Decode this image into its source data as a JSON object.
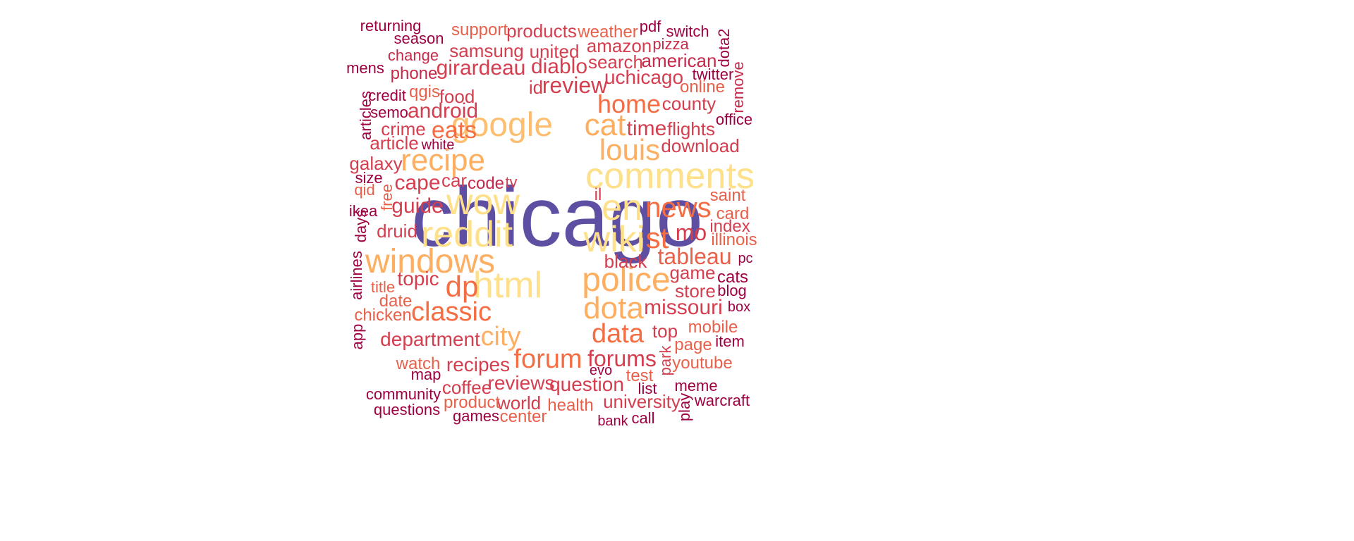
{
  "palette": [
    "#5e4fa2",
    "#fee08b",
    "#fdbf6f",
    "#fdae61",
    "#f46d43",
    "#e8604a",
    "#d53e4f",
    "#c52a4a",
    "#9e0142"
  ],
  "words": [
    {
      "text": "chicago",
      "size": 120,
      "color": "#5e4fa2"
    },
    {
      "text": "comments",
      "size": 52,
      "color": "#fee08b"
    },
    {
      "text": "reddit",
      "size": 52,
      "color": "#fee08b"
    },
    {
      "text": "wow",
      "size": 52,
      "color": "#fee08b"
    },
    {
      "text": "en",
      "size": 52,
      "color": "#fee08b"
    },
    {
      "text": "wiki",
      "size": 52,
      "color": "#fee08b"
    },
    {
      "text": "html",
      "size": 52,
      "color": "#fee08b"
    },
    {
      "text": "google",
      "size": 48,
      "color": "#fdbf6f"
    },
    {
      "text": "windows",
      "size": 48,
      "color": "#fdae61"
    },
    {
      "text": "police",
      "size": 48,
      "color": "#fdae61"
    },
    {
      "text": "recipe",
      "size": 44,
      "color": "#fdae61"
    },
    {
      "text": "louis",
      "size": 42,
      "color": "#fdae61"
    },
    {
      "text": "cat",
      "size": 44,
      "color": "#fdae61"
    },
    {
      "text": "dota",
      "size": 44,
      "color": "#fdae61"
    },
    {
      "text": "dp",
      "size": 42,
      "color": "#f46d43"
    },
    {
      "text": "st",
      "size": 42,
      "color": "#f46d43"
    },
    {
      "text": "news",
      "size": 40,
      "color": "#f46d43"
    },
    {
      "text": "classic",
      "size": 38,
      "color": "#f46d43"
    },
    {
      "text": "forum",
      "size": 38,
      "color": "#f46d43"
    },
    {
      "text": "data",
      "size": 38,
      "color": "#f46d43"
    },
    {
      "text": "city",
      "size": 38,
      "color": "#fdae61"
    },
    {
      "text": "home",
      "size": 36,
      "color": "#f46d43"
    },
    {
      "text": "eats",
      "size": 34,
      "color": "#f46d43"
    },
    {
      "text": "tableau",
      "size": 32,
      "color": "#e8604a"
    },
    {
      "text": "forums",
      "size": 32,
      "color": "#d53e4f"
    },
    {
      "text": "review",
      "size": 32,
      "color": "#d53e4f"
    },
    {
      "text": "mo",
      "size": 32,
      "color": "#d53e4f"
    },
    {
      "text": "missouri",
      "size": 30,
      "color": "#d53e4f"
    },
    {
      "text": "time",
      "size": 30,
      "color": "#d53e4f"
    },
    {
      "text": "android",
      "size": 30,
      "color": "#d53e4f"
    },
    {
      "text": "girardeau",
      "size": 30,
      "color": "#d53e4f"
    },
    {
      "text": "diablo",
      "size": 30,
      "color": "#d53e4f"
    },
    {
      "text": "guide",
      "size": 30,
      "color": "#d53e4f"
    },
    {
      "text": "cape",
      "size": 30,
      "color": "#d53e4f"
    },
    {
      "text": "department",
      "size": 28,
      "color": "#d53e4f"
    },
    {
      "text": "recipes",
      "size": 28,
      "color": "#d53e4f"
    },
    {
      "text": "reviews",
      "size": 28,
      "color": "#d53e4f"
    },
    {
      "text": "question",
      "size": 28,
      "color": "#d53e4f"
    },
    {
      "text": "topic",
      "size": 28,
      "color": "#d53e4f"
    },
    {
      "text": "uchicago",
      "size": 28,
      "color": "#d53e4f"
    },
    {
      "text": "samsung",
      "size": 26,
      "color": "#d53e4f"
    },
    {
      "text": "products",
      "size": 26,
      "color": "#d53e4f"
    },
    {
      "text": "search",
      "size": 26,
      "color": "#d53e4f"
    },
    {
      "text": "druid",
      "size": 26,
      "color": "#d53e4f"
    },
    {
      "text": "black",
      "size": 26,
      "color": "#d53e4f"
    },
    {
      "text": "game",
      "size": 26,
      "color": "#d53e4f"
    },
    {
      "text": "store",
      "size": 26,
      "color": "#d53e4f"
    },
    {
      "text": "top",
      "size": 26,
      "color": "#d53e4f"
    },
    {
      "text": "coffee",
      "size": 26,
      "color": "#d53e4f"
    },
    {
      "text": "world",
      "size": 26,
      "color": "#d53e4f"
    },
    {
      "text": "university",
      "size": 26,
      "color": "#d53e4f"
    },
    {
      "text": "amazon",
      "size": 26,
      "color": "#d53e4f"
    },
    {
      "text": "american",
      "size": 26,
      "color": "#c52a4a"
    },
    {
      "text": "county",
      "size": 26,
      "color": "#d53e4f"
    },
    {
      "text": "flights",
      "size": 26,
      "color": "#d53e4f"
    },
    {
      "text": "download",
      "size": 26,
      "color": "#d53e4f"
    },
    {
      "text": "united",
      "size": 26,
      "color": "#d53e4f"
    },
    {
      "text": "weather",
      "size": 24,
      "color": "#e8604a"
    },
    {
      "text": "support",
      "size": 24,
      "color": "#e8604a"
    },
    {
      "text": "food",
      "size": 26,
      "color": "#d53e4f"
    },
    {
      "text": "crime",
      "size": 26,
      "color": "#d53e4f"
    },
    {
      "text": "article",
      "size": 26,
      "color": "#d53e4f"
    },
    {
      "text": "galaxy",
      "size": 26,
      "color": "#d53e4f"
    },
    {
      "text": "car",
      "size": 26,
      "color": "#d53e4f"
    },
    {
      "text": "code",
      "size": 24,
      "color": "#c52a4a"
    },
    {
      "text": "index",
      "size": 24,
      "color": "#d53e4f"
    },
    {
      "text": "illinois",
      "size": 24,
      "color": "#e8604a"
    },
    {
      "text": "saint",
      "size": 24,
      "color": "#e8604a"
    },
    {
      "text": "card",
      "size": 24,
      "color": "#e8604a"
    },
    {
      "text": "mobile",
      "size": 24,
      "color": "#e8604a"
    },
    {
      "text": "page",
      "size": 24,
      "color": "#e8604a"
    },
    {
      "text": "youtube",
      "size": 24,
      "color": "#e8604a"
    },
    {
      "text": "health",
      "size": 24,
      "color": "#e8604a"
    },
    {
      "text": "product",
      "size": 24,
      "color": "#e8604a"
    },
    {
      "text": "center",
      "size": 24,
      "color": "#e8604a"
    },
    {
      "text": "test",
      "size": 24,
      "color": "#e8604a"
    },
    {
      "text": "watch",
      "size": 24,
      "color": "#e8604a"
    },
    {
      "text": "date",
      "size": 24,
      "color": "#e8604a"
    },
    {
      "text": "title",
      "size": 22,
      "color": "#e8604a"
    },
    {
      "text": "chicken",
      "size": 24,
      "color": "#e8604a"
    },
    {
      "text": "qgis",
      "size": 24,
      "color": "#e8604a"
    },
    {
      "text": "online",
      "size": 24,
      "color": "#e8604a"
    },
    {
      "text": "pizza",
      "size": 22,
      "color": "#c52a4a"
    },
    {
      "text": "phone",
      "size": 24,
      "color": "#c52a4a"
    },
    {
      "text": "change",
      "size": 22,
      "color": "#c52a4a"
    },
    {
      "text": "season",
      "size": 22,
      "color": "#9e0142"
    },
    {
      "text": "returning",
      "size": 22,
      "color": "#9e0142"
    },
    {
      "text": "mens",
      "size": 22,
      "color": "#9e0142"
    },
    {
      "text": "credit",
      "size": 22,
      "color": "#9e0142"
    },
    {
      "text": "semo",
      "size": 22,
      "color": "#9e0142"
    },
    {
      "text": "white",
      "size": 20,
      "color": "#9e0142"
    },
    {
      "text": "size",
      "size": 22,
      "color": "#9e0142"
    },
    {
      "text": "qid",
      "size": 22,
      "color": "#e8604a"
    },
    {
      "text": "ikea",
      "size": 22,
      "color": "#9e0142"
    },
    {
      "text": "tv",
      "size": 22,
      "color": "#d53e4f"
    },
    {
      "text": "il",
      "size": 24,
      "color": "#d53e4f"
    },
    {
      "text": "id",
      "size": 26,
      "color": "#d53e4f"
    },
    {
      "text": "pdf",
      "size": 22,
      "color": "#9e0142"
    },
    {
      "text": "switch",
      "size": 22,
      "color": "#9e0142"
    },
    {
      "text": "twitter",
      "size": 22,
      "color": "#9e0142"
    },
    {
      "text": "office",
      "size": 22,
      "color": "#9e0142"
    },
    {
      "text": "pc",
      "size": 20,
      "color": "#9e0142"
    },
    {
      "text": "cats",
      "size": 24,
      "color": "#9e0142"
    },
    {
      "text": "blog",
      "size": 22,
      "color": "#9e0142"
    },
    {
      "text": "box",
      "size": 20,
      "color": "#9e0142"
    },
    {
      "text": "item",
      "size": 22,
      "color": "#9e0142"
    },
    {
      "text": "meme",
      "size": 22,
      "color": "#9e0142"
    },
    {
      "text": "warcraft",
      "size": 22,
      "color": "#9e0142"
    },
    {
      "text": "call",
      "size": 22,
      "color": "#9e0142"
    },
    {
      "text": "bank",
      "size": 20,
      "color": "#9e0142"
    },
    {
      "text": "list",
      "size": 22,
      "color": "#9e0142"
    },
    {
      "text": "evo",
      "size": 20,
      "color": "#9e0142"
    },
    {
      "text": "games",
      "size": 22,
      "color": "#9e0142"
    },
    {
      "text": "questions",
      "size": 22,
      "color": "#9e0142"
    },
    {
      "text": "community",
      "size": 22,
      "color": "#9e0142"
    },
    {
      "text": "map",
      "size": 22,
      "color": "#9e0142"
    },
    {
      "text": "app",
      "size": 22,
      "color": "#9e0142",
      "vertical": true
    },
    {
      "text": "airlines",
      "size": 22,
      "color": "#9e0142",
      "vertical": true
    },
    {
      "text": "days",
      "size": 22,
      "color": "#9e0142",
      "vertical": true
    },
    {
      "text": "free",
      "size": 22,
      "color": "#e8604a",
      "vertical": true
    },
    {
      "text": "articles",
      "size": 22,
      "color": "#9e0142",
      "vertical": true
    },
    {
      "text": "remove",
      "size": 22,
      "color": "#c52a4a",
      "vertical": true
    },
    {
      "text": "dota2",
      "size": 22,
      "color": "#9e0142",
      "vertical": true
    },
    {
      "text": "park",
      "size": 22,
      "color": "#d53e4f",
      "vertical": true
    },
    {
      "text": "play",
      "size": 22,
      "color": "#9e0142",
      "vertical": true
    }
  ]
}
